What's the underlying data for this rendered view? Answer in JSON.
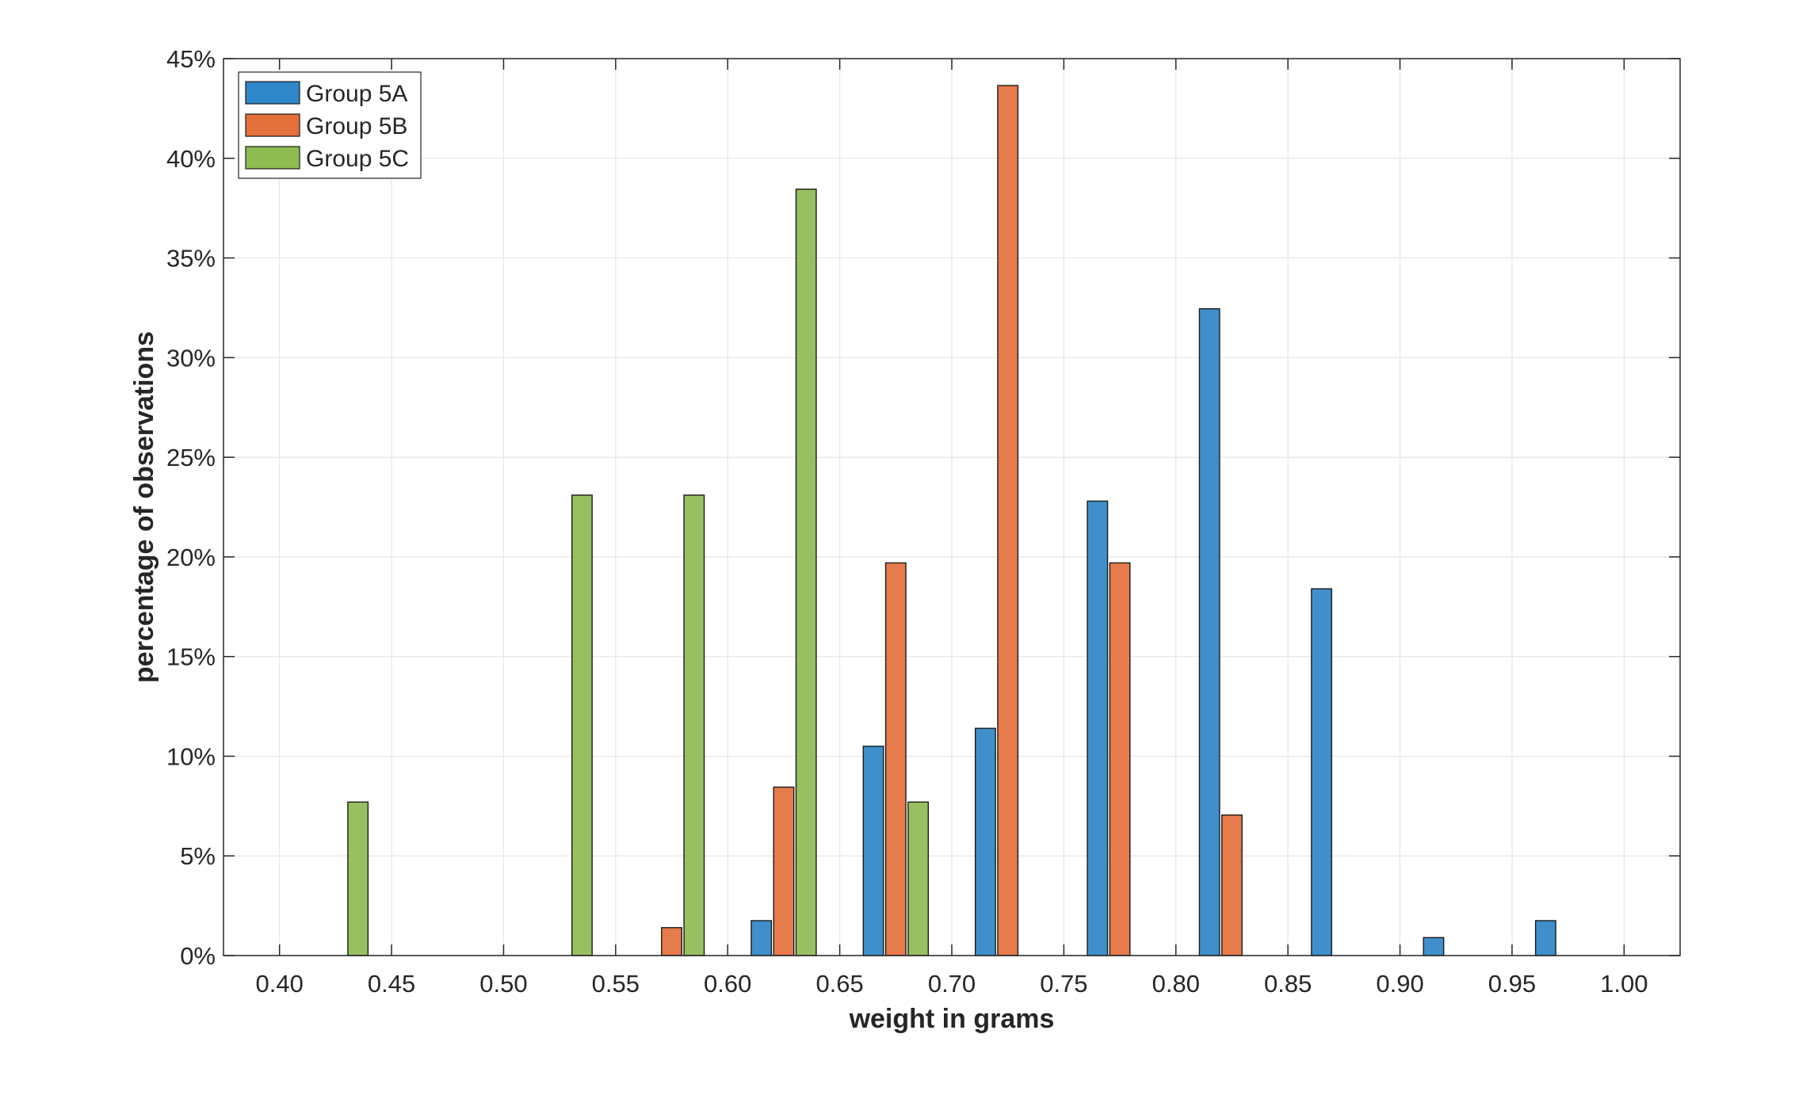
{
  "chart_data": {
    "type": "bar",
    "xlabel": "weight in grams",
    "ylabel": "percentage of observations",
    "xlim": [
      0.375,
      1.025
    ],
    "ylim": [
      0,
      45
    ],
    "xticks": [
      0.4,
      0.45,
      0.5,
      0.55,
      0.6,
      0.65,
      0.7,
      0.75,
      0.8,
      0.85,
      0.9,
      0.95,
      1.0
    ],
    "xtick_labels": [
      "0.40",
      "0.45",
      "0.50",
      "0.55",
      "0.60",
      "0.65",
      "0.70",
      "0.75",
      "0.80",
      "0.85",
      "0.90",
      "0.95",
      "1.00"
    ],
    "yticks": [
      0,
      5,
      10,
      15,
      20,
      25,
      30,
      35,
      40,
      45
    ],
    "ytick_labels": [
      "0%",
      "5%",
      "10%",
      "15%",
      "20%",
      "25%",
      "30%",
      "35%",
      "40%",
      "45%"
    ],
    "grid": true,
    "legend_position": "top-left",
    "series": [
      {
        "name": "Group 5A",
        "color": "#2f86c8",
        "points": [
          {
            "x": 0.615,
            "y": 1.75
          },
          {
            "x": 0.665,
            "y": 10.5
          },
          {
            "x": 0.715,
            "y": 11.4
          },
          {
            "x": 0.765,
            "y": 22.8
          },
          {
            "x": 0.815,
            "y": 32.45
          },
          {
            "x": 0.865,
            "y": 18.4
          },
          {
            "x": 0.915,
            "y": 0.9
          },
          {
            "x": 0.965,
            "y": 1.75
          }
        ]
      },
      {
        "name": "Group 5B",
        "color": "#e4703c",
        "points": [
          {
            "x": 0.575,
            "y": 1.4
          },
          {
            "x": 0.625,
            "y": 8.45
          },
          {
            "x": 0.675,
            "y": 19.7
          },
          {
            "x": 0.725,
            "y": 43.65
          },
          {
            "x": 0.775,
            "y": 19.7
          },
          {
            "x": 0.825,
            "y": 7.05
          }
        ]
      },
      {
        "name": "Group 5C",
        "color": "#8fbb52",
        "points": [
          {
            "x": 0.435,
            "y": 7.7
          },
          {
            "x": 0.535,
            "y": 23.1
          },
          {
            "x": 0.585,
            "y": 23.1
          },
          {
            "x": 0.635,
            "y": 38.45
          },
          {
            "x": 0.685,
            "y": 7.7
          }
        ]
      }
    ]
  }
}
